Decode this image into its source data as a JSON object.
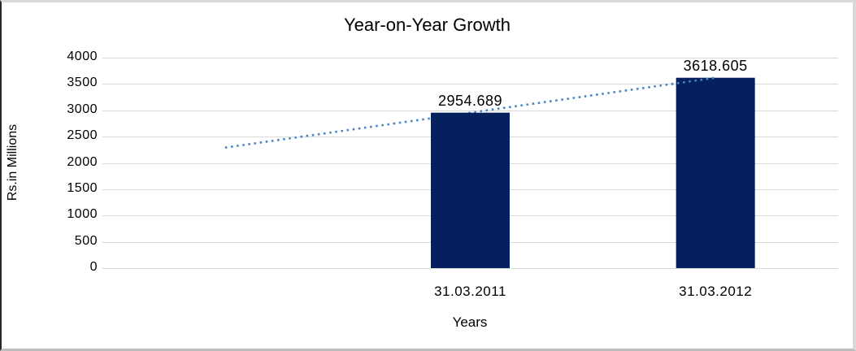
{
  "window": {
    "background": "#ffffff",
    "border_dark": "#262626",
    "border_light": "#d9d9d9"
  },
  "chart_data": {
    "type": "bar",
    "title": "Year-on-Year Growth",
    "xlabel": "Years",
    "ylabel": "Rs.in Millions",
    "categories": [
      "31.03.2011",
      "31.03.2012"
    ],
    "values": [
      2954.689,
      3618.605
    ],
    "data_labels": [
      "2954.689",
      "3618.605"
    ],
    "ylim": [
      0,
      4000
    ],
    "ytick_step": 500,
    "yticks": [
      "0",
      "500",
      "1000",
      "1500",
      "2000",
      "2500",
      "3000",
      "3500",
      "4000"
    ],
    "grid": "horizontal-only",
    "legend": "none",
    "bar_color": "#04215d",
    "gridline_color": "#d9d9d9",
    "text_color": "#000000",
    "slots_total": 3,
    "bar_slots": [
      1,
      2
    ],
    "trendline": {
      "type": "linear",
      "style": "dotted",
      "color": "#4a85c8",
      "start_slot": 0,
      "end_slot": 2,
      "start_value": 2290.8,
      "end_value": 3618.605
    }
  }
}
